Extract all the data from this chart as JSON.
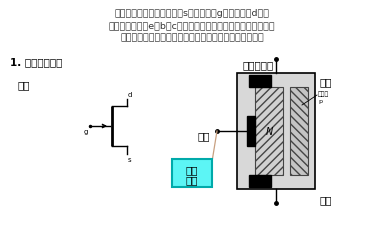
{
  "bg_color": "#ffffff",
  "title_text1": "场效应管有三个极：源极（s）、栅极（g）、漏极（d），",
  "title_text2": "对应于晶体管的e、b、c；有三个工作区域：截止区、恒流区、",
  "title_text3": "可变电阻区，对应于晶体管的截止区、放大区、饱和区。",
  "section_title": "1. 结型场效应管",
  "label_fuhao": "符号",
  "label_jiegou": "结构示意图",
  "label_shanjie": "栅极",
  "label_loujie": "漏极",
  "label_yuanjie": "源极",
  "label_daodian_line1": "导电",
  "label_daodian_line2": "沟道",
  "label_N": "N",
  "label_pnceng_line1": "耗尽层",
  "label_pnceng_line2": "p",
  "label_d": "d",
  "label_g": "g",
  "label_s": "s",
  "label_p": "p",
  "cyan_color": "#5cf5f5",
  "black": "#000000",
  "dark_gray": "#444444",
  "mid_gray": "#999999",
  "light_gray": "#d8d8d8",
  "outer_gray": "#c0c0c0",
  "hatch_gray": "#b0b0b0",
  "wire_color": "#c8a080",
  "text_color": "#333333"
}
